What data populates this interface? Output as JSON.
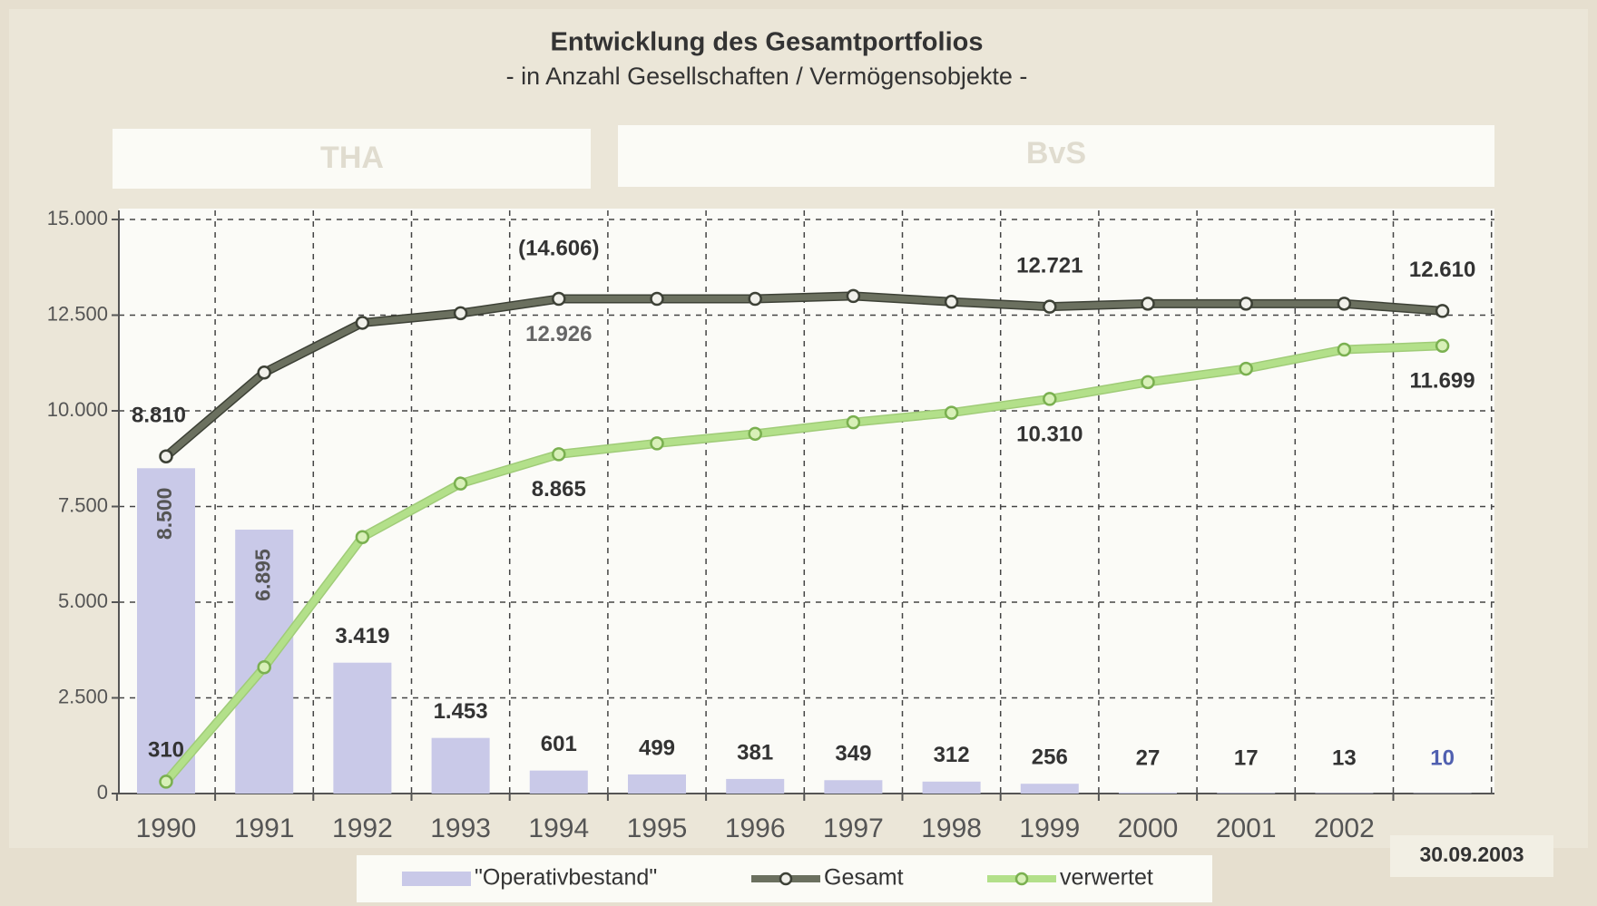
{
  "chart_data": {
    "type": "bar_line",
    "title": "Entwicklung des Gesamtportfolios",
    "subtitle": "- in Anzahl Gesellschaften / Vermögensobjekte -",
    "periods": [
      "THA",
      "BvS"
    ],
    "categories": [
      "1990",
      "1991",
      "1992",
      "1993",
      "1994",
      "1995",
      "1996",
      "1997",
      "1998",
      "1999",
      "2000",
      "2001",
      "2002",
      "30.09.2003"
    ],
    "ylim": [
      0,
      15000
    ],
    "yticks": [
      0,
      {
        "value": 2500,
        "label": "2.500"
      },
      {
        "value": 5000,
        "label": "5.000"
      },
      {
        "value": 7500,
        "label": "7.500"
      },
      {
        "value": 10000,
        "label": "10.000"
      },
      {
        "value": 12500,
        "label": "12.500"
      },
      {
        "value": 15000,
        "label": "15.000"
      }
    ],
    "grid": true,
    "annotations": [
      "(14.606)"
    ],
    "series": [
      {
        "name": "\"Operativbestand\"",
        "type": "bar",
        "color": "#c9c9e8",
        "values": [
          8500,
          6895,
          3419,
          1453,
          601,
          499,
          381,
          349,
          312,
          256,
          27,
          17,
          13,
          10
        ],
        "value_labels": [
          "8.500",
          "6.895",
          "3.419",
          "1.453",
          "601",
          "499",
          "381",
          "349",
          "312",
          "256",
          "27",
          "17",
          "13",
          "10"
        ]
      },
      {
        "name": "Gesamt",
        "type": "line",
        "color": "#6b705f",
        "values": [
          8810,
          11000,
          12300,
          12550,
          12926,
          12926,
          12926,
          13000,
          12850,
          12721,
          12800,
          12800,
          12800,
          12610
        ],
        "value_labels": [
          "8.810",
          null,
          null,
          null,
          "12.926",
          null,
          null,
          null,
          null,
          "12.721",
          null,
          null,
          null,
          "12.610"
        ]
      },
      {
        "name": "verwertet",
        "type": "line",
        "color": "#b3e08a",
        "values": [
          310,
          3300,
          6700,
          8100,
          8865,
          9150,
          9400,
          9700,
          9950,
          10310,
          10750,
          11100,
          11600,
          11699
        ],
        "value_labels": [
          "310",
          null,
          null,
          null,
          "8.865",
          null,
          null,
          null,
          null,
          "10.310",
          null,
          null,
          null,
          "11.699"
        ]
      }
    ]
  }
}
